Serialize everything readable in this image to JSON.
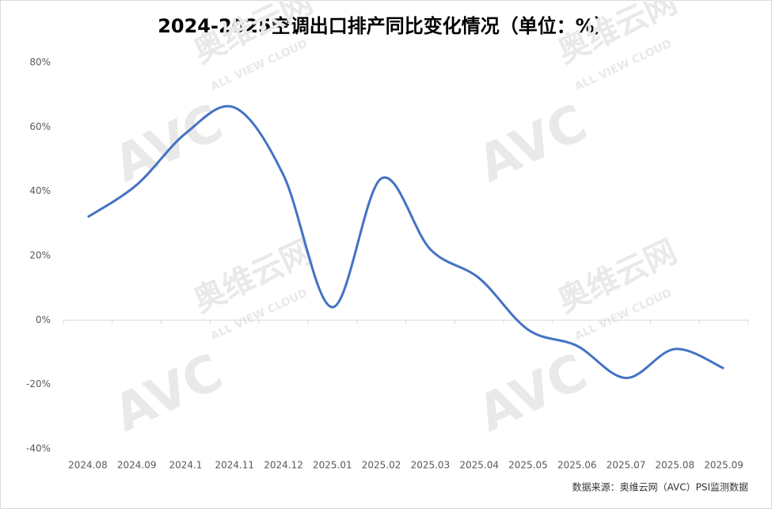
{
  "chart_data": {
    "type": "line",
    "title": "2024-2025空调出口排产同比变化情况（单位：%）",
    "categories": [
      "2024.08",
      "2024.09",
      "2024.1",
      "2024.11",
      "2024.12",
      "2025.01",
      "2025.02",
      "2025.03",
      "2025.04",
      "2025.05",
      "2025.06",
      "2025.07",
      "2025.08",
      "2025.09"
    ],
    "series": [
      {
        "name": "空调出口排产同比",
        "color": "#4472c4",
        "values": [
          32,
          42,
          58,
          66,
          45,
          4,
          44,
          22,
          13,
          -3,
          -8,
          -18,
          -9,
          -15
        ]
      }
    ],
    "ylim": [
      -40,
      80
    ],
    "yticks": [
      {
        "value": -40,
        "label": "-40%"
      },
      {
        "value": -20,
        "label": "-20%"
      },
      {
        "value": 0,
        "label": "0%"
      },
      {
        "value": 20,
        "label": "20%"
      },
      {
        "value": 40,
        "label": "40%"
      },
      {
        "value": 60,
        "label": "60%"
      },
      {
        "value": 80,
        "label": "80%"
      }
    ],
    "source": "数据来源：奥维云网（AVC）PSI监测数据",
    "watermark": {
      "brand": "奥维云网",
      "logo": "AVC",
      "slogan": "ALL VIEW CLOUD"
    }
  }
}
